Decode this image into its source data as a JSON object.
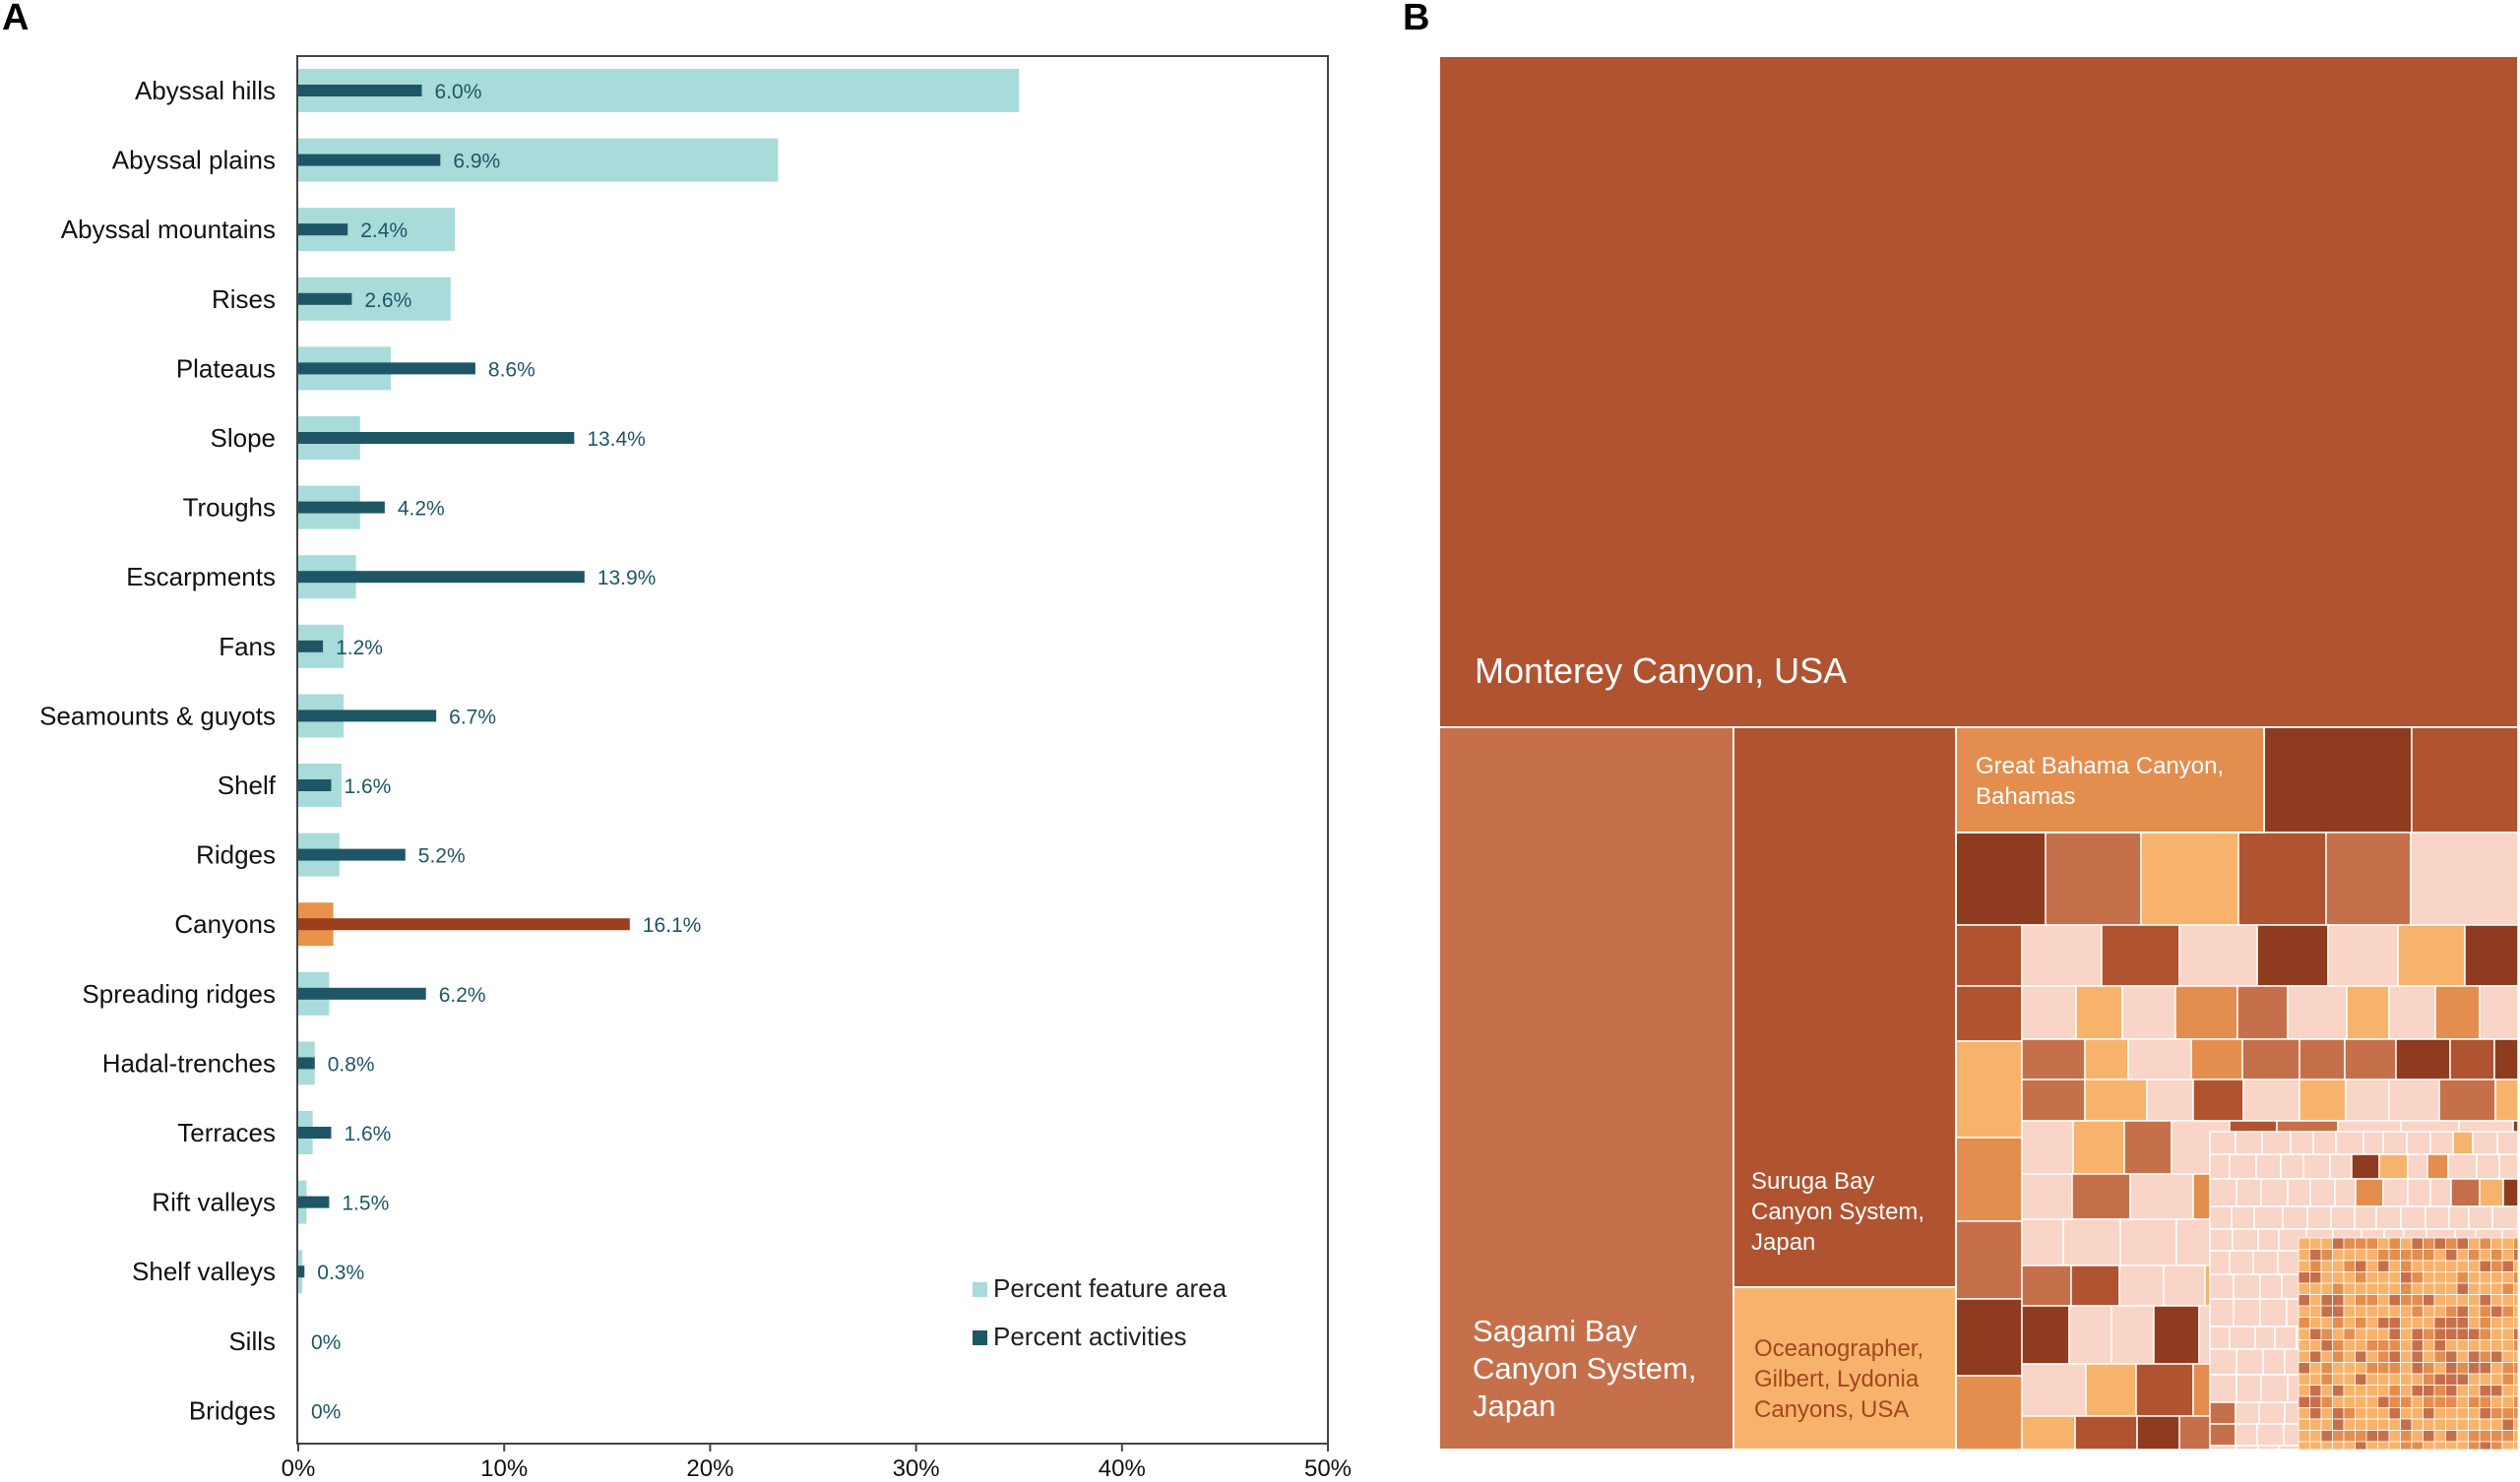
{
  "chart_data": [
    {
      "panel": "A",
      "type": "bar",
      "orientation": "horizontal",
      "categories": [
        "Abyssal hills",
        "Abyssal plains",
        "Abyssal mountains",
        "Rises",
        "Plateaus",
        "Slope",
        "Troughs",
        "Escarpments",
        "Fans",
        "Seamounts & guyots",
        "Shelf",
        "Ridges",
        "Canyons",
        "Spreading ridges",
        "Hadal-trenches",
        "Terraces",
        "Rift valleys",
        "Shelf valleys",
        "Sills",
        "Bridges"
      ],
      "series": [
        {
          "name": "Percent feature area",
          "color": "#a8dbd9",
          "values": [
            35.0,
            23.3,
            7.6,
            7.4,
            4.5,
            3.0,
            3.0,
            2.8,
            2.2,
            2.2,
            2.1,
            2.0,
            1.7,
            1.5,
            0.8,
            0.7,
            0.4,
            0.2,
            0,
            0
          ]
        },
        {
          "name": "Percent activities",
          "color": "#1e5666",
          "values": [
            6.0,
            6.9,
            2.4,
            2.6,
            8.6,
            13.4,
            4.2,
            13.9,
            1.2,
            6.7,
            1.6,
            5.2,
            16.1,
            6.2,
            0.8,
            1.6,
            1.5,
            0.3,
            0,
            0
          ],
          "labels": [
            "6.0%",
            "6.9%",
            "2.4%",
            "2.6%",
            "8.6%",
            "13.4%",
            "4.2%",
            "13.9%",
            "1.2%",
            "6.7%",
            "1.6%",
            "5.2%",
            "16.1%",
            "6.2%",
            "0.8%",
            "1.6%",
            "1.5%",
            "0.3%",
            "0%",
            "0%"
          ]
        }
      ],
      "highlight": {
        "category": "Canyons",
        "area_color": "#e8924a",
        "activity_color": "#9c3e1c"
      },
      "xlim": [
        0,
        50
      ],
      "xticks": [
        "0%",
        "10%",
        "20%",
        "30%",
        "40%",
        "50%"
      ],
      "legend_position": "bottom-right",
      "grid": false
    },
    {
      "panel": "B",
      "type": "treemap",
      "colors": {
        "large": "#b05330",
        "medium": "#c5704a",
        "dark": "#8e3b20",
        "orange": "#e38e4e",
        "light_orange": "#f7b36c",
        "pale": "#f8d5c7"
      },
      "labeled_tiles": [
        {
          "name": "Monterey Canyon, USA",
          "color": "#b05330"
        },
        {
          "name": "Sagami Bay Canyon System, Japan",
          "color": "#c5704a"
        },
        {
          "name": "Suruga Bay Canyon System, Japan",
          "color": "#b05330"
        },
        {
          "name": "Oceanographer, Gilbert, Lydonia Canyons, USA",
          "color": "#f7b36c"
        },
        {
          "name": "Great Bahama Canyon, Bahamas",
          "color": "#e38e4e"
        }
      ]
    }
  ],
  "panels": {
    "a_label": "A",
    "b_label": "B"
  },
  "treemap_labels": {
    "monterey": [
      "Monterey Canyon, USA"
    ],
    "sagami": [
      "Sagami Bay",
      "Canyon System,",
      "Japan"
    ],
    "suruga": [
      "Suruga Bay",
      "Canyon System,",
      "Japan"
    ],
    "oceanographer": [
      "Oceanographer,",
      "Gilbert, Lydonia",
      "Canyons, USA"
    ],
    "bahama": [
      "Great Bahama Canyon,",
      "Bahamas"
    ]
  }
}
